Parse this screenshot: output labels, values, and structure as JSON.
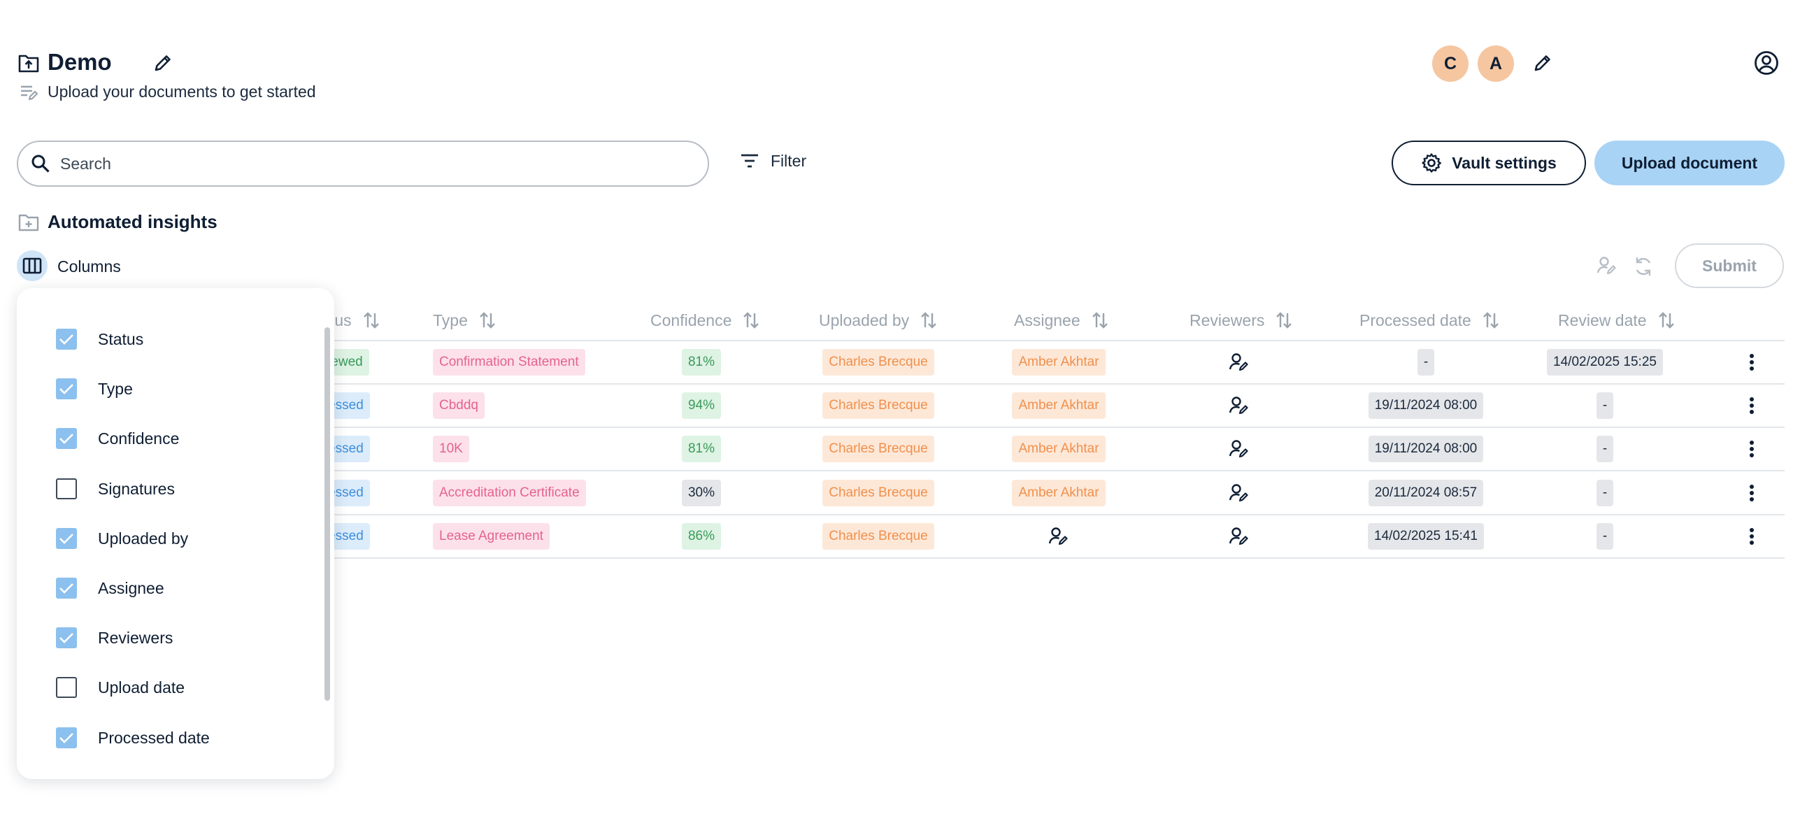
{
  "header": {
    "title": "Demo",
    "subtitle": "Upload your documents to get started",
    "avatars": [
      "C",
      "A"
    ]
  },
  "toolbar": {
    "search_placeholder": "Search",
    "filter_label": "Filter",
    "vault_settings_label": "Vault settings",
    "upload_label": "Upload document"
  },
  "section": {
    "title": "Automated insights",
    "columns_label": "Columns",
    "submit_label": "Submit"
  },
  "table": {
    "headers": {
      "status": "tus",
      "type": "Type",
      "confidence": "Confidence",
      "uploaded_by": "Uploaded by",
      "assignee": "Assignee",
      "reviewers": "Reviewers",
      "processed_date": "Processed date",
      "review_date": "Review date"
    },
    "rows": [
      {
        "status": "eviewed",
        "type": "Confirmation Statement",
        "confidence": "81%",
        "uploaded_by": "Charles Brecque",
        "assignee": "Amber Akhtar",
        "processed_date": "-",
        "review_date": "14/02/2025 15:25"
      },
      {
        "status": "ocessed",
        "type": "Cbddq",
        "confidence": "94%",
        "uploaded_by": "Charles Brecque",
        "assignee": "Amber Akhtar",
        "processed_date": "19/11/2024 08:00",
        "review_date": "-"
      },
      {
        "status": "ocessed",
        "type": "10K",
        "confidence": "81%",
        "uploaded_by": "Charles Brecque",
        "assignee": "Amber Akhtar",
        "processed_date": "19/11/2024 08:00",
        "review_date": "-"
      },
      {
        "status": "ocessed",
        "type": "Accreditation Certificate",
        "confidence": "30%",
        "uploaded_by": "Charles Brecque",
        "assignee": "Amber Akhtar",
        "processed_date": "20/11/2024 08:57",
        "review_date": "-"
      },
      {
        "status": "ocessed",
        "type": "Lease Agreement",
        "confidence": "86%",
        "uploaded_by": "Charles Brecque",
        "assignee": "",
        "processed_date": "14/02/2025 15:41",
        "review_date": "-"
      }
    ]
  },
  "columns_menu": {
    "items": [
      {
        "label": "Status",
        "checked": true
      },
      {
        "label": "Type",
        "checked": true
      },
      {
        "label": "Confidence",
        "checked": true
      },
      {
        "label": "Signatures",
        "checked": false
      },
      {
        "label": "Uploaded by",
        "checked": true
      },
      {
        "label": "Assignee",
        "checked": true
      },
      {
        "label": "Reviewers",
        "checked": true
      },
      {
        "label": "Upload date",
        "checked": false
      },
      {
        "label": "Processed date",
        "checked": true
      }
    ]
  },
  "colors": {
    "accent": "#a8d3f5",
    "avatar": "#f5c6a0",
    "checkbox_on": "#8cc0ee",
    "text": "#0f1e33"
  },
  "icons": [
    "folder-upload-icon",
    "pencil-icon",
    "notes-edit-icon",
    "account-circle-icon",
    "search-icon",
    "filter-icon",
    "gear-icon",
    "folder-plus-icon",
    "columns-icon",
    "assign-user-icon",
    "refresh-icon",
    "sort-icon",
    "more-vert-icon",
    "check-icon"
  ]
}
